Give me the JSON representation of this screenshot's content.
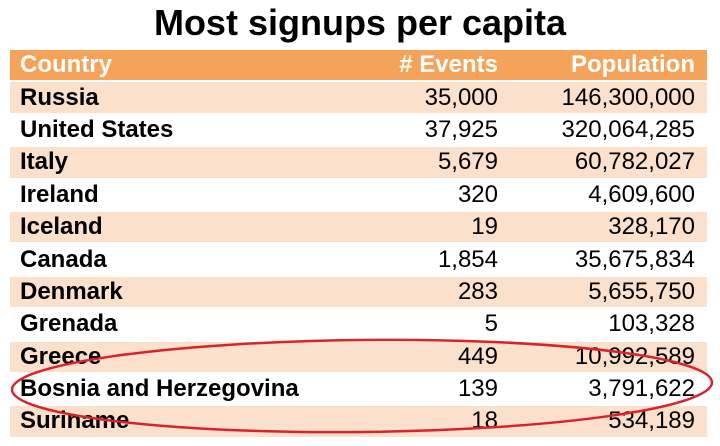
{
  "title": "Most signups per capita",
  "headers": {
    "country": "Country",
    "events": "# Events",
    "population": "Population"
  },
  "rows": [
    {
      "country": "Russia",
      "events": "35,000",
      "population": "146,300,000"
    },
    {
      "country": "United States",
      "events": "37,925",
      "population": "320,064,285"
    },
    {
      "country": "Italy",
      "events": "5,679",
      "population": "60,782,027"
    },
    {
      "country": "Ireland",
      "events": "320",
      "population": "4,609,600"
    },
    {
      "country": "Iceland",
      "events": "19",
      "population": "328,170"
    },
    {
      "country": "Canada",
      "events": "1,854",
      "population": "35,675,834"
    },
    {
      "country": "Denmark",
      "events": "283",
      "population": "5,655,750"
    },
    {
      "country": "Grenada",
      "events": "5",
      "population": "103,328"
    },
    {
      "country": "Greece",
      "events": "449",
      "population": "10,992,589"
    },
    {
      "country": "Bosnia and Herzegovina",
      "events": "139",
      "population": "3,791,622"
    },
    {
      "country": "Suriname",
      "events": "18",
      "population": "534,189"
    }
  ],
  "colors": {
    "header_bg": "#f6a35a",
    "odd_row_bg": "#fbe0cc",
    "ellipse_stroke": "#d9232a"
  }
}
